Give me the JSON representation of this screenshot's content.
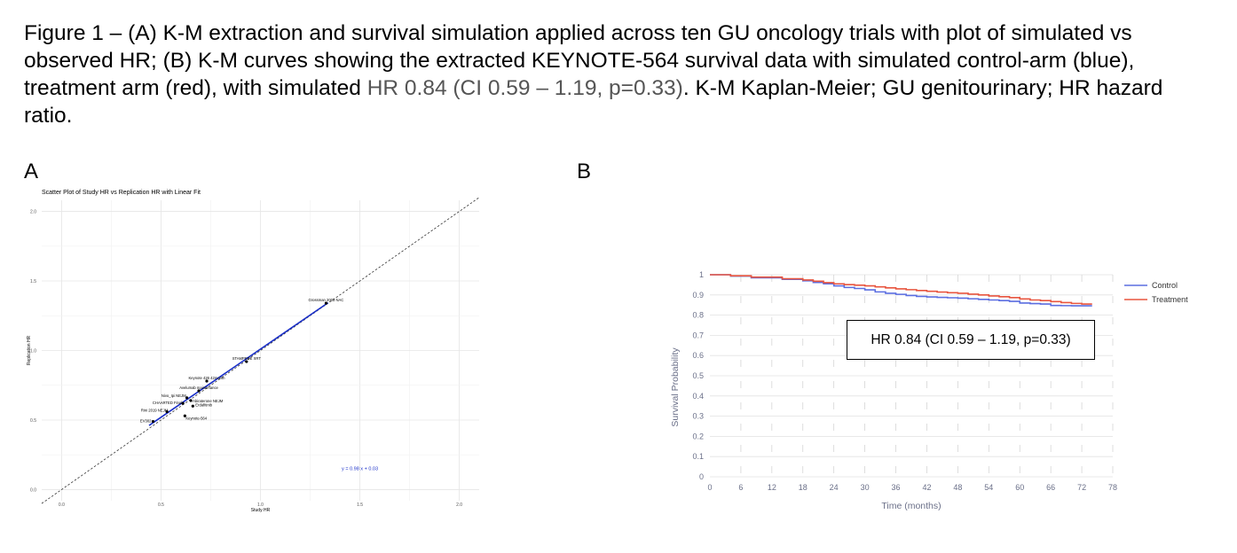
{
  "caption": {
    "part1": "Figure 1 – (A) K-M extraction and survival simulation applied across ten GU oncology trials with plot of simulated vs observed HR; (B) K-M curves showing the extracted KEYNOTE-564 survival data with simulated control-arm (blue), treatment arm (red), with simulated ",
    "highlight": "HR 0.84 (CI 0.59 – 1.19, p=0.33)",
    "part2": ". K-M Kaplan-Meier; GU genitourinary; HR hazard ratio."
  },
  "panel_a": {
    "letter": "A"
  },
  "panel_b": {
    "letter": "B"
  },
  "chart_data": [
    {
      "type": "scatter",
      "title": "Scatter Plot of Study HR vs Replication HR with Linear Fit",
      "xlabel": "Study HR",
      "ylabel": "Replication HR",
      "xlim": [
        -0.1,
        2.1
      ],
      "ylim": [
        -0.08,
        2.08
      ],
      "xticks": [
        0.0,
        0.5,
        1.0,
        1.5,
        2.0
      ],
      "yticks": [
        0.0,
        0.5,
        1.0,
        1.5,
        2.0
      ],
      "xtick_labels": [
        "0.0",
        "0.5",
        "1.0",
        "1.5",
        "2.0"
      ],
      "ytick_labels": [
        "0.0",
        "0.5",
        "1.0",
        "1.5",
        "2.0"
      ],
      "grid": true,
      "points": [
        {
          "label": "Grossman 2003 NAC",
          "x": 1.33,
          "y": 1.34
        },
        {
          "label": "STAMPEDE XRT",
          "x": 0.93,
          "y": 0.92
        },
        {
          "label": "Keynote 426 42month",
          "x": 0.73,
          "y": 0.78
        },
        {
          "label": "Avelumab maintenance",
          "x": 0.69,
          "y": 0.71
        },
        {
          "label": "Nivo_Ipi NEJM",
          "x": 0.63,
          "y": 0.66
        },
        {
          "label": "Abiraterone NEJM",
          "x": 0.65,
          "y": 0.64
        },
        {
          "label": "CHAARTED Final",
          "x": 0.61,
          "y": 0.62
        },
        {
          "label": "Erdafitinib",
          "x": 0.66,
          "y": 0.6
        },
        {
          "label": "Rini 2019 NEJM",
          "x": 0.53,
          "y": 0.56
        },
        {
          "label": "Keynote-564",
          "x": 0.62,
          "y": 0.53
        },
        {
          "label": "EV302",
          "x": 0.46,
          "y": 0.49
        }
      ],
      "fit": {
        "equation": "y = 0.98 x + 0.03",
        "slope": 0.98,
        "intercept": 0.03,
        "x_range": [
          0.44,
          1.34
        ]
      },
      "reference_line": {
        "style": "dashed",
        "slope": 1,
        "intercept": 0
      }
    },
    {
      "type": "line",
      "title": "",
      "xlabel": "Time (months)",
      "ylabel": "Survival Probability",
      "xlim": [
        0,
        78
      ],
      "ylim": [
        0,
        1
      ],
      "xticks": [
        0,
        6,
        12,
        18,
        24,
        30,
        36,
        42,
        48,
        54,
        60,
        66,
        72,
        78
      ],
      "xtick_labels": [
        "0",
        "6",
        "12",
        "18",
        "24",
        "30",
        "36",
        "42",
        "48",
        "54",
        "60",
        "66",
        "72",
        "78"
      ],
      "yticks": [
        0,
        0.1,
        0.2,
        0.3,
        0.4,
        0.5,
        0.6,
        0.7,
        0.8,
        0.9,
        1
      ],
      "ytick_labels": [
        "0",
        "0.1",
        "0.2",
        "0.3",
        "0.4",
        "0.5",
        "0.6",
        "0.7",
        "0.8",
        "0.9",
        "1"
      ],
      "grid": true,
      "legend": "right",
      "annotation": "HR 0.84 (CI 0.59 – 1.19, p=0.33)",
      "series": [
        {
          "name": "Control",
          "color": "#5b6ee1",
          "x": [
            0,
            4,
            8,
            14,
            18,
            20,
            22,
            24,
            26,
            28,
            30,
            32,
            34,
            36,
            38,
            40,
            42,
            44,
            46,
            48,
            50,
            52,
            54,
            56,
            58,
            60,
            62,
            64,
            66,
            68,
            70,
            72,
            74
          ],
          "y": [
            1,
            0.993,
            0.985,
            0.977,
            0.97,
            0.962,
            0.955,
            0.945,
            0.937,
            0.932,
            0.925,
            0.915,
            0.908,
            0.903,
            0.897,
            0.893,
            0.89,
            0.888,
            0.886,
            0.884,
            0.881,
            0.878,
            0.875,
            0.872,
            0.868,
            0.86,
            0.857,
            0.855,
            0.848,
            0.847,
            0.846,
            0.846,
            0.846
          ]
        },
        {
          "name": "Treatment",
          "color": "#e8553f",
          "x": [
            0,
            4,
            8,
            14,
            18,
            20,
            22,
            24,
            26,
            28,
            30,
            32,
            34,
            36,
            38,
            40,
            42,
            44,
            46,
            48,
            50,
            52,
            54,
            56,
            58,
            60,
            62,
            64,
            66,
            68,
            70,
            72,
            74
          ],
          "y": [
            1,
            0.995,
            0.988,
            0.98,
            0.974,
            0.968,
            0.961,
            0.955,
            0.951,
            0.948,
            0.945,
            0.94,
            0.935,
            0.93,
            0.926,
            0.922,
            0.918,
            0.914,
            0.911,
            0.908,
            0.904,
            0.9,
            0.895,
            0.891,
            0.887,
            0.88,
            0.875,
            0.872,
            0.867,
            0.862,
            0.858,
            0.855,
            0.855
          ]
        }
      ]
    }
  ]
}
